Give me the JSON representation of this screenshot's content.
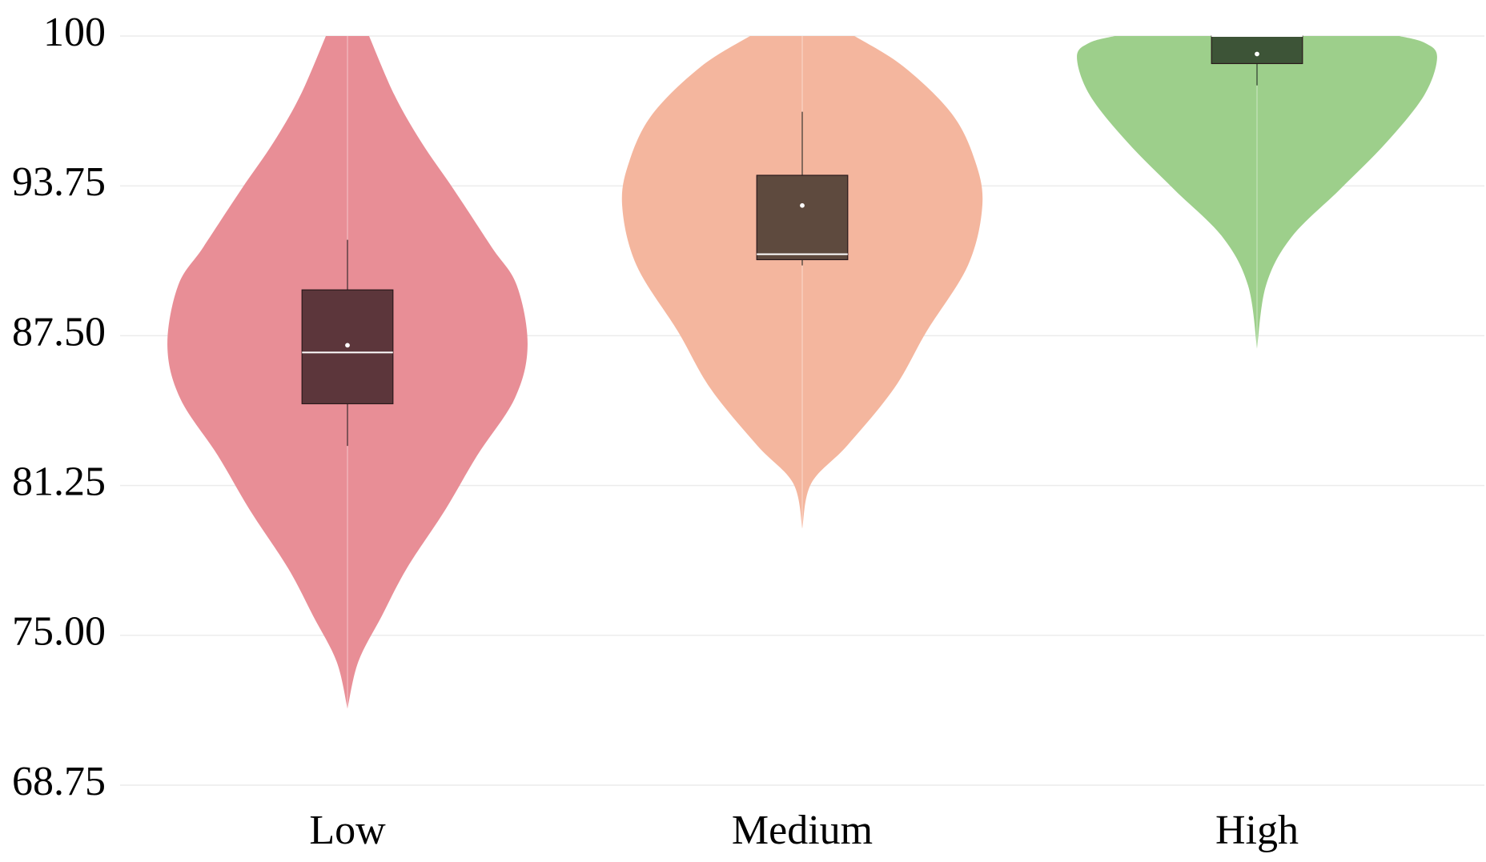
{
  "chart_data": {
    "type": "violin",
    "categories": [
      "Low",
      "Medium",
      "High"
    ],
    "ylim": [
      68.75,
      100
    ],
    "yticks": [
      68.75,
      {
        "value": 75,
        "label": "75.00"
      },
      81.25,
      {
        "value": 87.5,
        "label": "87.50"
      },
      93.75,
      100
    ],
    "grid": true,
    "violins": [
      {
        "color": "#e88e96",
        "box_color": "#5c363b",
        "q1": 84.66,
        "median": 86.8,
        "q3": 89.41,
        "whislo": 82.9,
        "whishi": 91.5,
        "mean": 87.1,
        "density_y": [
          100,
          97.55,
          95.57,
          93.6,
          91.2,
          89.6,
          87.1,
          84.9,
          82.5,
          80.2,
          77.8,
          75.8,
          73.9,
          71.94
        ],
        "density_width": [
          0.12,
          0.26,
          0.41,
          0.59,
          0.8,
          0.94,
          1.0,
          0.93,
          0.72,
          0.54,
          0.33,
          0.19,
          0.06,
          0
        ]
      },
      {
        "color": "#f4b69e",
        "box_color": "#5e4a3e",
        "q1": 90.67,
        "median": 90.9,
        "q3": 94.19,
        "whislo": 90.43,
        "whishi": 96.84,
        "mean": 92.93,
        "density_y": [
          100,
          98.74,
          96.76,
          94.78,
          92.93,
          90.43,
          87.67,
          85.3,
          82.92,
          81.34,
          79.45
        ],
        "density_width": [
          0.29,
          0.56,
          0.83,
          0.96,
          1.0,
          0.92,
          0.69,
          0.51,
          0.25,
          0.05,
          0
        ]
      },
      {
        "color": "#9dcf8b",
        "box_color": "#3d5437",
        "q1": 98.85,
        "median": 100,
        "q3": 100,
        "whislo": 97.94,
        "whishi": 100,
        "mean": 99.25,
        "density_y": [
          100,
          99.72,
          99.13,
          97.55,
          95.57,
          93.6,
          91.6,
          89.6,
          86.96
        ],
        "density_width": [
          0.79,
          0.93,
          1.0,
          0.93,
          0.72,
          0.46,
          0.19,
          0.05,
          0
        ]
      }
    ]
  }
}
